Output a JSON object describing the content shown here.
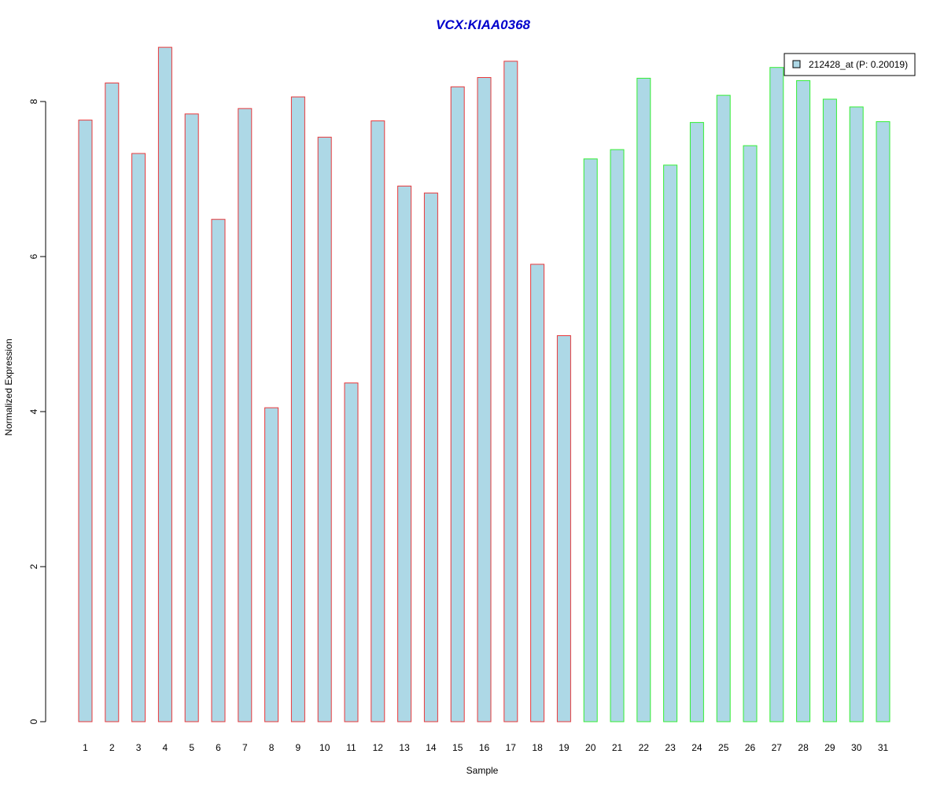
{
  "chart_data": {
    "type": "bar",
    "title": "VCX:KIAA0368",
    "xlabel": "Sample",
    "ylabel": "Normalized Expression",
    "ylim": [
      0,
      8.7
    ],
    "yticks": [
      0,
      2,
      4,
      6,
      8
    ],
    "categories": [
      "1",
      "2",
      "3",
      "4",
      "5",
      "6",
      "7",
      "8",
      "9",
      "10",
      "11",
      "12",
      "13",
      "14",
      "15",
      "16",
      "17",
      "18",
      "19",
      "20",
      "21",
      "22",
      "23",
      "24",
      "25",
      "26",
      "27",
      "28",
      "29",
      "30",
      "31"
    ],
    "series": [
      {
        "name": "212428_at (P: 0.20019)",
        "values": [
          7.76,
          8.24,
          7.33,
          8.7,
          7.84,
          6.48,
          7.91,
          4.05,
          8.06,
          7.54,
          4.37,
          7.75,
          6.91,
          6.82,
          8.19,
          8.31,
          8.52,
          5.9,
          4.98,
          7.26,
          7.38,
          8.3,
          7.18,
          7.73,
          8.08,
          7.43,
          8.44,
          8.27,
          8.03,
          7.93,
          7.74
        ]
      }
    ],
    "groups": [
      {
        "samples": [
          1,
          19
        ],
        "border_color": "#e8383b"
      },
      {
        "samples": [
          20,
          31
        ],
        "border_color": "#33ee33"
      }
    ],
    "bar_fill": "#add8e6",
    "title_color": "#0000cc",
    "legend_position": "top-right",
    "grid": false
  }
}
